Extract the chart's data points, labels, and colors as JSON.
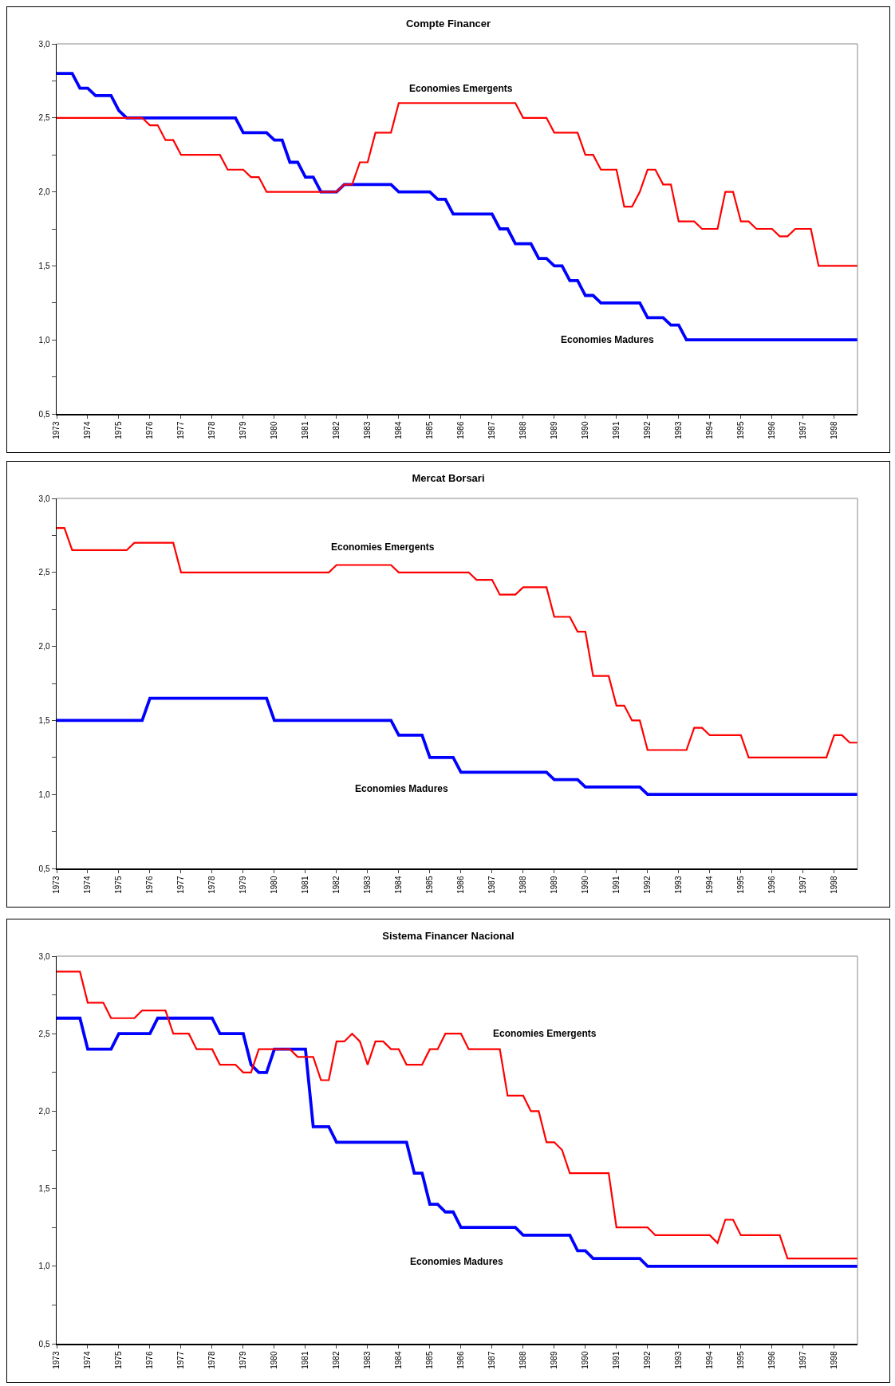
{
  "chart_data": [
    {
      "type": "line",
      "title": "Compte Financer",
      "xlim": [
        1973,
        1998.75
      ],
      "xticks": [
        1973,
        1974,
        1975,
        1976,
        1977,
        1978,
        1979,
        1980,
        1981,
        1982,
        1983,
        1984,
        1985,
        1986,
        1987,
        1988,
        1989,
        1990,
        1991,
        1992,
        1993,
        1994,
        1995,
        1996,
        1997,
        1998
      ],
      "ylim": [
        0.5,
        3
      ],
      "yticks": [
        {
          "value": 0.5,
          "label": "0,5"
        },
        {
          "value": 0.75,
          "label": null
        },
        {
          "value": 1,
          "label": "1,0"
        },
        {
          "value": 1.25,
          "label": null
        },
        {
          "value": 1.5,
          "label": "1,5"
        },
        {
          "value": 1.75,
          "label": null
        },
        {
          "value": 2,
          "label": "2,0"
        },
        {
          "value": 2.25,
          "label": null
        },
        {
          "value": 2.5,
          "label": "2,5"
        },
        {
          "value": 2.75,
          "label": null
        },
        {
          "value": 3,
          "label": "3,0"
        }
      ],
      "grid": false,
      "legend": false,
      "series": [
        {
          "name": "Economies Emergents",
          "color": "#ff0000",
          "x": [
            1973,
            1975.75,
            1976,
            1976.25,
            1976.5,
            1976.75,
            1977,
            1978.25,
            1978.5,
            1979,
            1979.25,
            1979.5,
            1979.75,
            1982,
            1982.25,
            1982.5,
            1982.75,
            1983,
            1983.25,
            1983.75,
            1984,
            1987.75,
            1988,
            1988.75,
            1989,
            1989.75,
            1990,
            1990.25,
            1990.5,
            1991,
            1991.25,
            1991.5,
            1991.75,
            1992,
            1992.25,
            1992.5,
            1992.75,
            1993,
            1993.5,
            1993.75,
            1994.25,
            1994.5,
            1994.75,
            1995,
            1995.25,
            1995.5,
            1996,
            1996.25,
            1996.5,
            1996.75,
            1997.25,
            1997.5,
            1998.75
          ],
          "values": [
            2.5,
            2.5,
            2.45,
            2.45,
            2.35,
            2.35,
            2.25,
            2.25,
            2.15,
            2.15,
            2.1,
            2.1,
            2.0,
            2.0,
            2.05,
            2.05,
            2.2,
            2.2,
            2.4,
            2.4,
            2.6,
            2.6,
            2.5,
            2.5,
            2.4,
            2.4,
            2.25,
            2.25,
            2.15,
            2.15,
            1.9,
            1.9,
            2.0,
            2.15,
            2.15,
            2.05,
            2.05,
            1.8,
            1.8,
            1.75,
            1.75,
            2.0,
            2.0,
            1.8,
            1.8,
            1.75,
            1.75,
            1.7,
            1.7,
            1.75,
            1.75,
            1.5,
            1.5
          ]
        },
        {
          "name": "Economies Madures",
          "color": "#0000ff",
          "x": [
            1973,
            1973.5,
            1973.75,
            1974,
            1974.25,
            1974.75,
            1975,
            1975.25,
            1978.75,
            1979,
            1979.75,
            1980,
            1980.25,
            1980.5,
            1980.75,
            1981,
            1981.25,
            1981.5,
            1982,
            1982.25,
            1983.75,
            1984,
            1985,
            1985.25,
            1985.5,
            1985.75,
            1987,
            1987.25,
            1987.5,
            1987.75,
            1988.25,
            1988.5,
            1988.75,
            1989,
            1989.25,
            1989.5,
            1989.75,
            1990,
            1990.25,
            1990.5,
            1991.75,
            1992,
            1992.5,
            1992.75,
            1993,
            1993.25,
            1998.75
          ],
          "values": [
            2.8,
            2.8,
            2.7,
            2.7,
            2.65,
            2.65,
            2.55,
            2.5,
            2.5,
            2.4,
            2.4,
            2.35,
            2.35,
            2.2,
            2.2,
            2.1,
            2.1,
            2.0,
            2.0,
            2.05,
            2.05,
            2.0,
            2.0,
            1.95,
            1.95,
            1.85,
            1.85,
            1.75,
            1.75,
            1.65,
            1.65,
            1.55,
            1.55,
            1.5,
            1.5,
            1.4,
            1.4,
            1.3,
            1.3,
            1.25,
            1.25,
            1.15,
            1.15,
            1.1,
            1.1,
            1.0,
            1.0
          ]
        }
      ]
    },
    {
      "type": "line",
      "title": "Mercat Borsari",
      "xlim": [
        1973,
        1998.75
      ],
      "xticks": [
        1973,
        1974,
        1975,
        1976,
        1977,
        1978,
        1979,
        1980,
        1981,
        1982,
        1983,
        1984,
        1985,
        1986,
        1987,
        1988,
        1989,
        1990,
        1991,
        1992,
        1993,
        1994,
        1995,
        1996,
        1997,
        1998
      ],
      "ylim": [
        0.5,
        3
      ],
      "yticks": [
        {
          "value": 0.5,
          "label": "0,5"
        },
        {
          "value": 0.75,
          "label": null
        },
        {
          "value": 1,
          "label": "1,0"
        },
        {
          "value": 1.25,
          "label": null
        },
        {
          "value": 1.5,
          "label": "1,5"
        },
        {
          "value": 1.75,
          "label": null
        },
        {
          "value": 2,
          "label": "2,0"
        },
        {
          "value": 2.25,
          "label": null
        },
        {
          "value": 2.5,
          "label": "2,5"
        },
        {
          "value": 2.75,
          "label": null
        },
        {
          "value": 3,
          "label": "3,0"
        }
      ],
      "grid": false,
      "legend": false,
      "series": [
        {
          "name": "Economies Emergents",
          "color": "#ff0000",
          "x": [
            1973,
            1973.25,
            1973.5,
            1975.25,
            1975.5,
            1976.75,
            1977,
            1981.75,
            1982,
            1983.75,
            1984,
            1986.25,
            1986.5,
            1987,
            1987.25,
            1987.75,
            1988,
            1988.75,
            1989,
            1989.5,
            1989.75,
            1990,
            1990.25,
            1990.75,
            1991,
            1991.25,
            1991.5,
            1991.75,
            1992,
            1993.25,
            1993.5,
            1993.75,
            1994,
            1995,
            1995.25,
            1997.75,
            1998,
            1998.25,
            1998.5,
            1998.75
          ],
          "values": [
            2.8,
            2.8,
            2.65,
            2.65,
            2.7,
            2.7,
            2.5,
            2.5,
            2.55,
            2.55,
            2.5,
            2.5,
            2.45,
            2.45,
            2.35,
            2.35,
            2.4,
            2.4,
            2.2,
            2.2,
            2.1,
            2.1,
            1.8,
            1.8,
            1.6,
            1.6,
            1.5,
            1.5,
            1.3,
            1.3,
            1.45,
            1.45,
            1.4,
            1.4,
            1.25,
            1.25,
            1.4,
            1.4,
            1.35,
            1.35
          ]
        },
        {
          "name": "Economies Madures",
          "color": "#0000ff",
          "x": [
            1973,
            1975.75,
            1976,
            1979.75,
            1980,
            1983.75,
            1984,
            1984.75,
            1985,
            1985.75,
            1986,
            1988.75,
            1989,
            1989.75,
            1990,
            1991.75,
            1992,
            1998.75
          ],
          "values": [
            1.5,
            1.5,
            1.65,
            1.65,
            1.5,
            1.5,
            1.4,
            1.4,
            1.25,
            1.25,
            1.15,
            1.15,
            1.1,
            1.1,
            1.05,
            1.05,
            1.0,
            1.0
          ]
        }
      ]
    },
    {
      "type": "line",
      "title": "Sistema Financer Nacional",
      "xlim": [
        1973,
        1998.75
      ],
      "xticks": [
        1973,
        1974,
        1975,
        1976,
        1977,
        1978,
        1979,
        1980,
        1981,
        1982,
        1983,
        1984,
        1985,
        1986,
        1987,
        1988,
        1989,
        1990,
        1991,
        1992,
        1993,
        1994,
        1995,
        1996,
        1997,
        1998
      ],
      "ylim": [
        0.5,
        3
      ],
      "yticks": [
        {
          "value": 0.5,
          "label": "0,5"
        },
        {
          "value": 0.75,
          "label": null
        },
        {
          "value": 1,
          "label": "1,0"
        },
        {
          "value": 1.25,
          "label": null
        },
        {
          "value": 1.5,
          "label": "1,5"
        },
        {
          "value": 1.75,
          "label": null
        },
        {
          "value": 2,
          "label": "2,0"
        },
        {
          "value": 2.25,
          "label": null
        },
        {
          "value": 2.5,
          "label": "2,5"
        },
        {
          "value": 2.75,
          "label": null
        },
        {
          "value": 3,
          "label": "3,0"
        }
      ],
      "grid": false,
      "legend": false,
      "series": [
        {
          "name": "Economies Emergents",
          "color": "#ff0000",
          "x": [
            1973,
            1973.75,
            1974,
            1974.5,
            1974.75,
            1975.5,
            1975.75,
            1976.5,
            1976.75,
            1977.25,
            1977.5,
            1978,
            1978.25,
            1978.75,
            1979,
            1979.25,
            1979.5,
            1980.5,
            1980.75,
            1981.25,
            1981.5,
            1981.75,
            1982,
            1982.25,
            1982.5,
            1982.75,
            1983,
            1983.25,
            1983.5,
            1983.75,
            1984,
            1984.25,
            1984.75,
            1985,
            1985.25,
            1985.5,
            1986,
            1986.25,
            1987.25,
            1987.5,
            1988,
            1988.25,
            1988.5,
            1988.75,
            1989,
            1989.25,
            1989.5,
            1990.75,
            1991,
            1992,
            1992.25,
            1994,
            1994.25,
            1994.5,
            1994.75,
            1995,
            1996.25,
            1996.5,
            1998.75
          ],
          "values": [
            2.9,
            2.9,
            2.7,
            2.7,
            2.6,
            2.6,
            2.65,
            2.65,
            2.5,
            2.5,
            2.4,
            2.4,
            2.3,
            2.3,
            2.25,
            2.25,
            2.4,
            2.4,
            2.35,
            2.35,
            2.2,
            2.2,
            2.45,
            2.45,
            2.5,
            2.45,
            2.3,
            2.45,
            2.45,
            2.4,
            2.4,
            2.3,
            2.3,
            2.4,
            2.4,
            2.5,
            2.5,
            2.4,
            2.4,
            2.1,
            2.1,
            2.0,
            2.0,
            1.8,
            1.8,
            1.75,
            1.6,
            1.6,
            1.25,
            1.25,
            1.2,
            1.2,
            1.15,
            1.3,
            1.3,
            1.2,
            1.2,
            1.05,
            1.05
          ]
        },
        {
          "name": "Economies Madures",
          "color": "#0000ff",
          "x": [
            1973,
            1973.75,
            1974,
            1974.75,
            1975,
            1976,
            1976.25,
            1978,
            1978.25,
            1979,
            1979.25,
            1979.5,
            1979.75,
            1980,
            1981,
            1981.25,
            1981.75,
            1982,
            1984.25,
            1984.5,
            1984.75,
            1985,
            1985.25,
            1985.5,
            1985.75,
            1986,
            1987.75,
            1988,
            1989.5,
            1989.75,
            1990,
            1990.25,
            1991.75,
            1992,
            1998.75
          ],
          "values": [
            2.6,
            2.6,
            2.4,
            2.4,
            2.5,
            2.5,
            2.6,
            2.6,
            2.5,
            2.5,
            2.3,
            2.25,
            2.25,
            2.4,
            2.4,
            1.9,
            1.9,
            1.8,
            1.8,
            1.6,
            1.6,
            1.4,
            1.4,
            1.35,
            1.35,
            1.25,
            1.25,
            1.2,
            1.2,
            1.1,
            1.1,
            1.05,
            1.05,
            1.0,
            1.0
          ]
        }
      ]
    }
  ]
}
